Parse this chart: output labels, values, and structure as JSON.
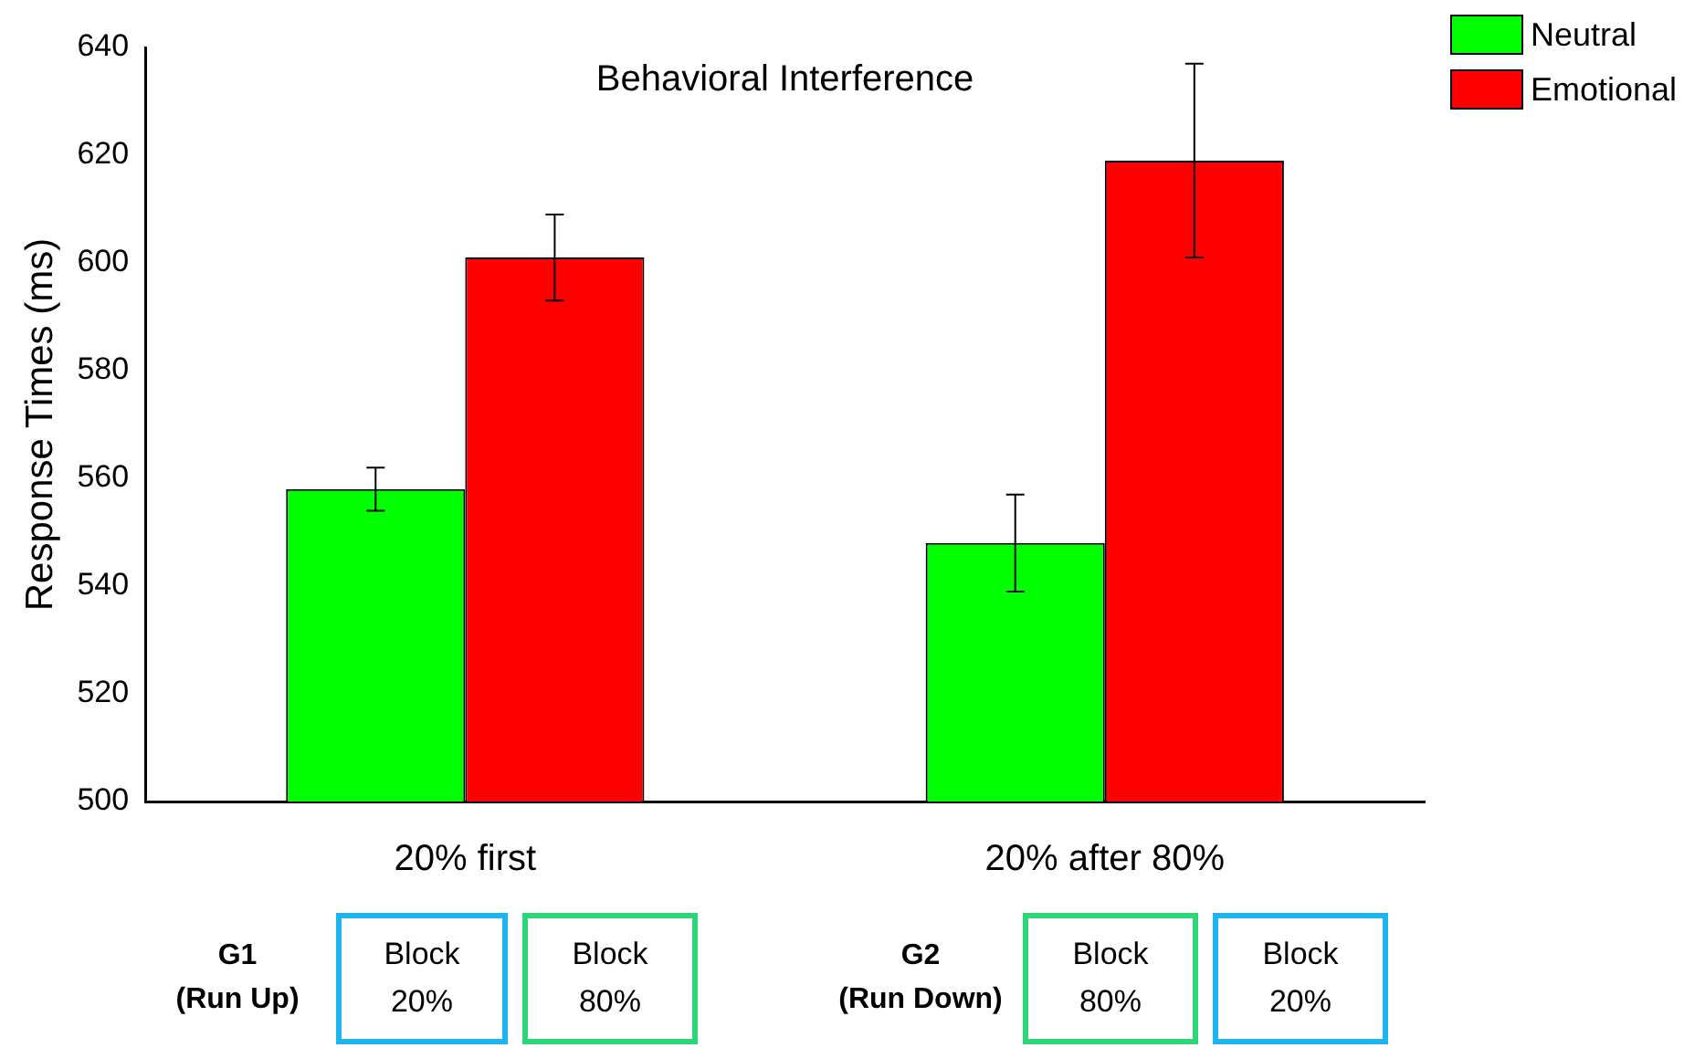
{
  "chart_data": {
    "type": "bar",
    "title": "Behavioral Interference",
    "ylabel": "Response Times (ms)",
    "categories": [
      "20% first",
      "20% after 80%"
    ],
    "series": [
      {
        "name": "Neutral",
        "color": "#00ff00",
        "values": [
          558,
          548
        ],
        "errors": [
          4,
          9
        ]
      },
      {
        "name": "Emotional",
        "color": "#ff0000",
        "values": [
          601,
          619
        ],
        "errors": [
          8,
          18
        ]
      }
    ],
    "ylim": [
      500,
      640
    ],
    "yticks": [
      500,
      520,
      540,
      560,
      580,
      600,
      620,
      640
    ],
    "grid": false,
    "legend": "top right",
    "annotations": [
      "G1\n(Run Up)",
      "Block\n20%",
      "Block\n80%",
      "G2\n(Run Down)",
      "Block\n80%",
      "Block\n20%"
    ]
  }
}
